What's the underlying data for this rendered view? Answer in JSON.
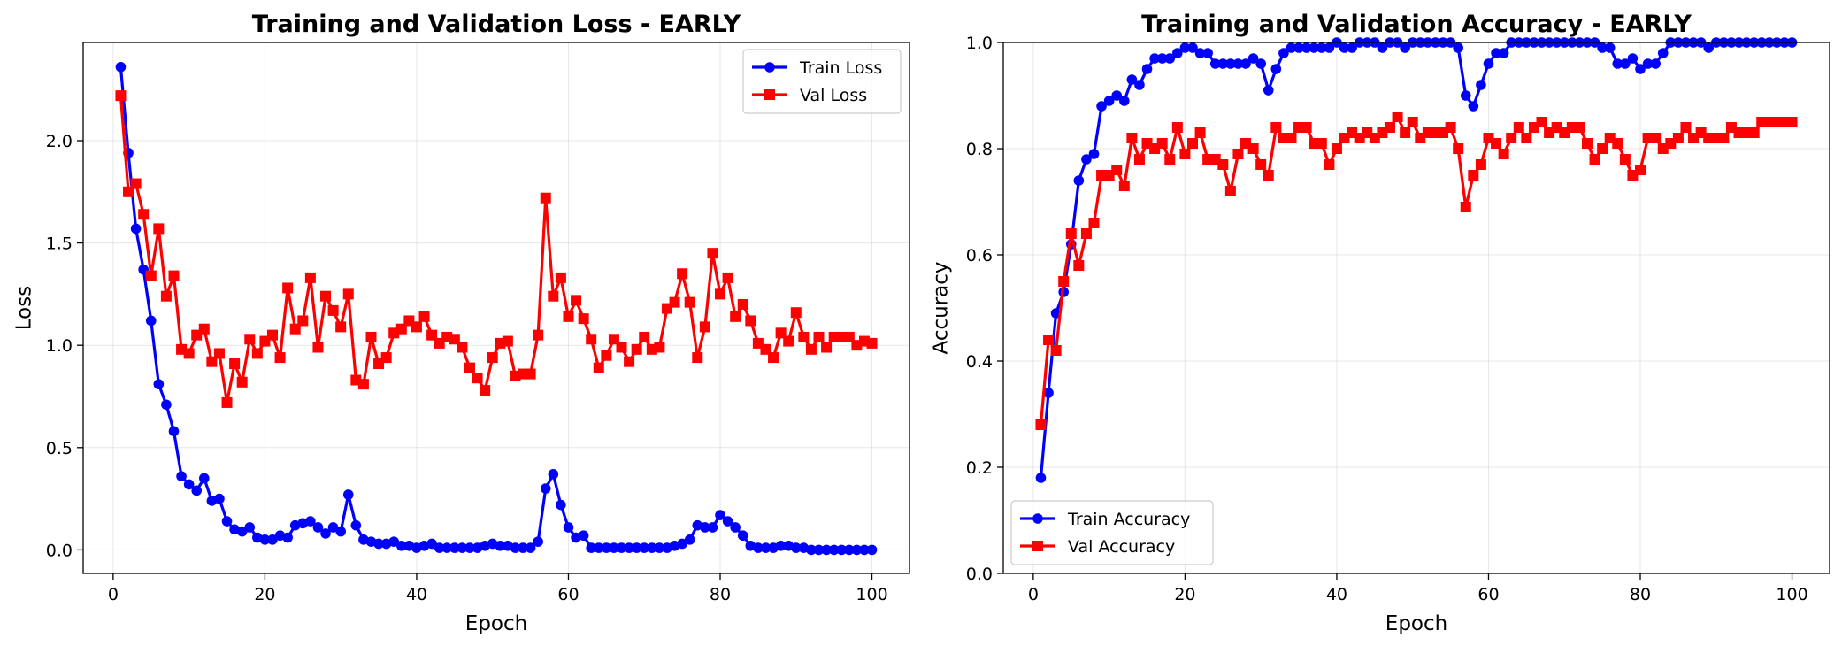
{
  "chart_data": [
    {
      "type": "line",
      "title": "Training and Validation Loss - EARLY",
      "xlabel": "Epoch",
      "ylabel": "Loss",
      "xlim": [
        -3.95,
        104.95
      ],
      "ylim": [
        -0.115,
        2.48
      ],
      "xticks": [
        0,
        20,
        40,
        60,
        80,
        100
      ],
      "xtick_labels": [
        "0",
        "20",
        "40",
        "60",
        "80",
        "100"
      ],
      "yticks": [
        0.0,
        0.5,
        1.0,
        1.5,
        2.0
      ],
      "ytick_labels": [
        "0.0",
        "0.5",
        "1.0",
        "1.5",
        "2.0"
      ],
      "grid": true,
      "legend_position": "upper right",
      "series": [
        {
          "name": "Train Loss",
          "color": "#0000ff",
          "marker": "circle",
          "values": [
            2.36,
            1.94,
            1.57,
            1.37,
            1.12,
            0.81,
            0.71,
            0.58,
            0.36,
            0.32,
            0.29,
            0.35,
            0.24,
            0.25,
            0.14,
            0.1,
            0.09,
            0.11,
            0.06,
            0.05,
            0.05,
            0.07,
            0.06,
            0.12,
            0.13,
            0.14,
            0.11,
            0.08,
            0.11,
            0.09,
            0.27,
            0.12,
            0.05,
            0.04,
            0.03,
            0.03,
            0.04,
            0.02,
            0.02,
            0.01,
            0.02,
            0.03,
            0.01,
            0.01,
            0.01,
            0.01,
            0.01,
            0.01,
            0.02,
            0.03,
            0.02,
            0.02,
            0.01,
            0.01,
            0.01,
            0.04,
            0.3,
            0.37,
            0.22,
            0.11,
            0.06,
            0.07,
            0.01,
            0.01,
            0.01,
            0.01,
            0.01,
            0.01,
            0.01,
            0.01,
            0.01,
            0.01,
            0.01,
            0.02,
            0.03,
            0.05,
            0.12,
            0.11,
            0.11,
            0.17,
            0.14,
            0.11,
            0.07,
            0.02,
            0.01,
            0.01,
            0.01,
            0.02,
            0.02,
            0.01,
            0.01,
            0.0,
            0.0,
            0.0,
            0.0,
            0.0,
            0.0,
            0.0,
            0.0,
            0.0
          ]
        },
        {
          "name": "Val Loss",
          "color": "#ff0000",
          "marker": "square",
          "values": [
            2.22,
            1.75,
            1.79,
            1.64,
            1.34,
            1.57,
            1.24,
            1.34,
            0.98,
            0.96,
            1.05,
            1.08,
            0.92,
            0.96,
            0.72,
            0.91,
            0.82,
            1.03,
            0.96,
            1.02,
            1.05,
            0.94,
            1.28,
            1.08,
            1.12,
            1.33,
            0.99,
            1.24,
            1.17,
            1.09,
            1.25,
            0.83,
            0.81,
            1.04,
            0.91,
            0.94,
            1.06,
            1.08,
            1.12,
            1.09,
            1.14,
            1.05,
            1.01,
            1.04,
            1.03,
            0.99,
            0.89,
            0.84,
            0.78,
            0.94,
            1.01,
            1.02,
            0.85,
            0.86,
            0.86,
            1.05,
            1.72,
            1.24,
            1.33,
            1.14,
            1.22,
            1.13,
            1.03,
            0.89,
            0.95,
            1.03,
            0.99,
            0.92,
            0.98,
            1.04,
            0.98,
            0.99,
            1.18,
            1.21,
            1.35,
            1.21,
            0.94,
            1.09,
            1.45,
            1.25,
            1.33,
            1.14,
            1.2,
            1.12,
            1.01,
            0.98,
            0.94,
            1.06,
            1.02,
            1.16,
            1.04,
            0.98,
            1.04,
            0.99,
            1.04,
            1.04,
            1.04,
            1.0,
            1.02,
            1.01
          ]
        }
      ]
    },
    {
      "type": "line",
      "title": "Training and Validation Accuracy - EARLY",
      "xlabel": "Epoch",
      "ylabel": "Accuracy",
      "xlim": [
        -3.95,
        104.95
      ],
      "ylim": [
        0.0,
        1.0
      ],
      "xticks": [
        0,
        20,
        40,
        60,
        80,
        100
      ],
      "xtick_labels": [
        "0",
        "20",
        "40",
        "60",
        "80",
        "100"
      ],
      "yticks": [
        0.0,
        0.2,
        0.4,
        0.6,
        0.8,
        1.0
      ],
      "ytick_labels": [
        "0.0",
        "0.2",
        "0.4",
        "0.6",
        "0.8",
        "1.0"
      ],
      "grid": true,
      "legend_position": "lower left",
      "series": [
        {
          "name": "Train Accuracy",
          "color": "#0000ff",
          "marker": "circle",
          "values": [
            0.18,
            0.34,
            0.49,
            0.53,
            0.62,
            0.74,
            0.78,
            0.79,
            0.88,
            0.89,
            0.9,
            0.89,
            0.93,
            0.92,
            0.95,
            0.97,
            0.97,
            0.97,
            0.98,
            0.99,
            0.99,
            0.98,
            0.98,
            0.96,
            0.96,
            0.96,
            0.96,
            0.96,
            0.97,
            0.96,
            0.91,
            0.95,
            0.98,
            0.99,
            0.99,
            0.99,
            0.99,
            0.99,
            0.99,
            1.0,
            0.99,
            0.99,
            1.0,
            1.0,
            1.0,
            0.99,
            1.0,
            1.0,
            0.99,
            1.0,
            1.0,
            1.0,
            1.0,
            1.0,
            1.0,
            0.99,
            0.9,
            0.88,
            0.92,
            0.96,
            0.98,
            0.98,
            1.0,
            1.0,
            1.0,
            1.0,
            1.0,
            1.0,
            1.0,
            1.0,
            1.0,
            1.0,
            1.0,
            1.0,
            0.99,
            0.99,
            0.96,
            0.96,
            0.97,
            0.95,
            0.96,
            0.96,
            0.98,
            1.0,
            1.0,
            1.0,
            1.0,
            1.0,
            0.99,
            1.0,
            1.0,
            1.0,
            1.0,
            1.0,
            1.0,
            1.0,
            1.0,
            1.0,
            1.0,
            1.0
          ]
        },
        {
          "name": "Val Accuracy",
          "color": "#ff0000",
          "marker": "square",
          "values": [
            0.28,
            0.44,
            0.42,
            0.55,
            0.64,
            0.58,
            0.64,
            0.66,
            0.75,
            0.75,
            0.76,
            0.73,
            0.82,
            0.78,
            0.81,
            0.8,
            0.81,
            0.78,
            0.84,
            0.79,
            0.81,
            0.83,
            0.78,
            0.78,
            0.77,
            0.72,
            0.79,
            0.81,
            0.8,
            0.77,
            0.75,
            0.84,
            0.82,
            0.82,
            0.84,
            0.84,
            0.81,
            0.81,
            0.77,
            0.8,
            0.82,
            0.83,
            0.82,
            0.83,
            0.82,
            0.83,
            0.84,
            0.86,
            0.83,
            0.85,
            0.82,
            0.83,
            0.83,
            0.83,
            0.84,
            0.8,
            0.69,
            0.75,
            0.77,
            0.82,
            0.81,
            0.79,
            0.82,
            0.84,
            0.82,
            0.84,
            0.85,
            0.83,
            0.84,
            0.83,
            0.84,
            0.84,
            0.81,
            0.78,
            0.8,
            0.82,
            0.81,
            0.78,
            0.75,
            0.76,
            0.82,
            0.82,
            0.8,
            0.81,
            0.82,
            0.84,
            0.82,
            0.83,
            0.82,
            0.82,
            0.82,
            0.84,
            0.83,
            0.83,
            0.83,
            0.85,
            0.85,
            0.85,
            0.85,
            0.85
          ]
        }
      ]
    }
  ]
}
